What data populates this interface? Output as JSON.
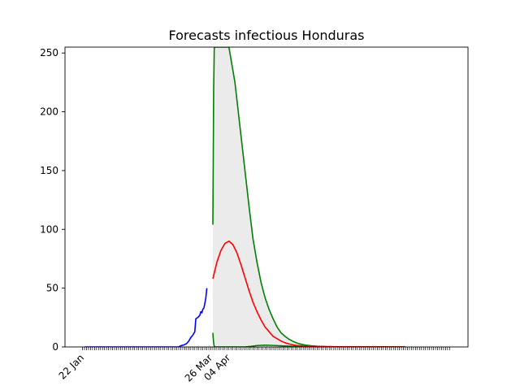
{
  "chart_data": {
    "type": "line",
    "title": "Forecasts infectious Honduras",
    "xlabel": "",
    "ylabel": "",
    "x_range_days": [
      -4,
      110
    ],
    "ylim": [
      0,
      255
    ],
    "y_ticks": [
      0,
      50,
      100,
      150,
      200,
      250
    ],
    "x_tick_labels": [
      {
        "label": "22 Jan",
        "day": 0
      },
      {
        "label": "26 Mar",
        "day": 64
      },
      {
        "label": "04 Apr",
        "day": 73
      }
    ],
    "grid": false,
    "legend": "none",
    "colors": {
      "observed": "#0000ff",
      "forecast": "#ff0000",
      "bounds": "#008000",
      "band": "#ebebeb"
    },
    "series": [
      {
        "role": "observed",
        "points": [
          [
            0,
            0
          ],
          [
            20,
            0
          ],
          [
            30,
            0
          ],
          [
            40,
            0
          ],
          [
            47,
            0
          ],
          [
            48,
            1
          ],
          [
            50,
            2
          ],
          [
            51,
            3
          ],
          [
            52,
            5
          ],
          [
            53,
            8
          ],
          [
            54,
            10
          ],
          [
            55,
            13
          ],
          [
            55.5,
            24
          ],
          [
            56.5,
            25
          ],
          [
            57.5,
            27
          ],
          [
            58,
            30
          ],
          [
            58.5,
            29
          ],
          [
            59,
            32
          ],
          [
            59.5,
            33
          ],
          [
            60,
            37
          ],
          [
            60.5,
            42
          ],
          [
            61,
            50
          ]
        ]
      },
      {
        "role": "forecast",
        "points": [
          [
            64,
            58
          ],
          [
            66,
            72
          ],
          [
            68,
            82
          ],
          [
            70,
            88
          ],
          [
            72,
            90
          ],
          [
            74,
            87
          ],
          [
            76,
            80
          ],
          [
            78,
            70
          ],
          [
            80,
            59
          ],
          [
            82,
            48
          ],
          [
            84,
            38
          ],
          [
            86,
            30
          ],
          [
            88,
            23
          ],
          [
            90,
            17
          ],
          [
            92,
            13
          ],
          [
            94,
            9
          ],
          [
            96,
            7
          ],
          [
            98,
            5
          ],
          [
            100,
            3.5
          ],
          [
            102,
            2.5
          ],
          [
            104,
            1.8
          ],
          [
            106,
            1.2
          ],
          [
            108,
            0.9
          ],
          [
            110,
            0.6
          ],
          [
            113,
            0.4
          ],
          [
            116,
            0.3
          ],
          [
            120,
            0.2
          ],
          [
            125,
            0.1
          ],
          [
            140,
            0.05
          ],
          [
            160,
            0.01
          ]
        ]
      },
      {
        "role": "upper-bound",
        "points": [
          [
            64,
            104
          ],
          [
            64.2,
            160
          ],
          [
            64.4,
            220
          ],
          [
            64.7,
            255
          ],
          [
            69,
            255
          ],
          [
            69.5,
            255
          ],
          [
            72,
            255
          ],
          [
            75,
            225
          ],
          [
            78,
            180
          ],
          [
            80,
            150
          ],
          [
            82,
            120
          ],
          [
            84,
            92
          ],
          [
            86,
            72
          ],
          [
            88,
            55
          ],
          [
            90,
            42
          ],
          [
            92,
            32
          ],
          [
            94,
            24
          ],
          [
            96,
            17
          ],
          [
            98,
            12
          ],
          [
            100,
            9
          ],
          [
            102,
            6.5
          ],
          [
            104,
            4.7
          ],
          [
            106,
            3.3
          ],
          [
            108,
            2.3
          ],
          [
            110,
            1.6
          ],
          [
            113,
            1.0
          ],
          [
            116,
            0.6
          ],
          [
            120,
            0.3
          ],
          [
            125,
            0.15
          ],
          [
            140,
            0.05
          ],
          [
            160,
            0.01
          ]
        ]
      },
      {
        "role": "lower-bound",
        "points": [
          [
            64,
            12
          ],
          [
            64.3,
            5
          ],
          [
            64.6,
            1
          ],
          [
            65,
            0
          ],
          [
            70,
            0
          ],
          [
            80,
            0
          ],
          [
            83,
            0.5
          ],
          [
            86,
            1.2
          ],
          [
            90,
            1.5
          ],
          [
            95,
            1.2
          ],
          [
            100,
            0.8
          ],
          [
            105,
            0.5
          ],
          [
            110,
            0.3
          ],
          [
            120,
            0.2
          ],
          [
            140,
            0.05
          ],
          [
            160,
            0.01
          ]
        ]
      }
    ],
    "x_axis_ticks": {
      "first_day": -1,
      "last_day": 182,
      "step": 1
    }
  }
}
